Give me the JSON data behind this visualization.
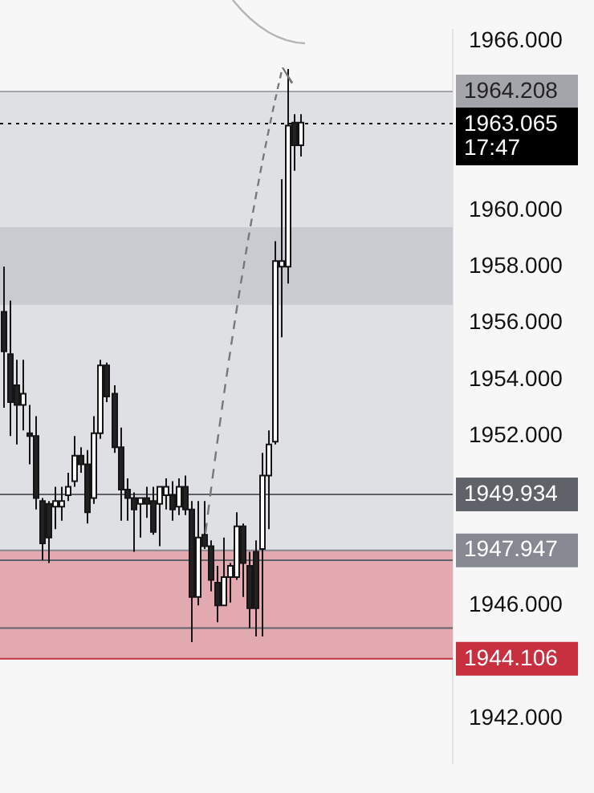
{
  "chart_data": {
    "type": "candlestick",
    "categories": [
      null,
      null,
      null,
      null,
      null,
      null,
      null,
      null,
      null,
      null,
      null,
      null,
      null,
      null,
      null,
      null,
      null,
      null,
      null,
      null,
      null,
      null,
      null,
      null,
      null,
      null,
      null,
      null,
      null,
      null,
      null,
      null,
      null,
      null,
      null,
      null,
      null,
      null,
      null,
      null,
      null,
      null,
      null,
      null,
      null,
      null,
      null,
      null,
      null,
      null,
      null,
      null,
      null,
      null,
      null,
      null,
      null,
      null,
      null,
      null,
      null,
      null,
      null,
      null,
      null,
      null,
      null,
      null,
      null,
      null
    ],
    "ohlc": [
      [
        1956.4,
        1958.0,
        1953.0,
        1955.0
      ],
      [
        1954.9,
        1956.8,
        1952.0,
        1953.2
      ],
      [
        1953.8,
        1954.7,
        1951.7,
        1953.1
      ],
      [
        1953.1,
        1954.7,
        1952.2,
        1953.5
      ],
      [
        1952.1,
        1953.1,
        1951.0,
        1952.0
      ],
      [
        1952.0,
        1952.7,
        1949.4,
        1949.8
      ],
      [
        1949.7,
        1949.8,
        1947.6,
        1948.2
      ],
      [
        1949.6,
        1949.7,
        1947.5,
        1948.4
      ],
      [
        1949.5,
        1950.2,
        1948.7,
        1949.7
      ],
      [
        1949.5,
        1950.2,
        1949.0,
        1949.7
      ],
      [
        1949.9,
        1950.7,
        1949.7,
        1950.2
      ],
      [
        1950.4,
        1952.0,
        1950.2,
        1951.3
      ],
      [
        1951.3,
        1951.6,
        1950.7,
        1951.0
      ],
      [
        1951.0,
        1951.5,
        1948.9,
        1949.3
      ],
      [
        1949.8,
        1952.7,
        1949.6,
        1952.1
      ],
      [
        1952.1,
        1954.7,
        1951.9,
        1954.5
      ],
      [
        1954.5,
        1954.6,
        1953.2,
        1953.4
      ],
      [
        1953.5,
        1953.8,
        1951.4,
        1951.6
      ],
      [
        1951.6,
        1952.3,
        1949.0,
        1950.1
      ],
      [
        1950.1,
        1950.5,
        1949.0,
        1949.8
      ],
      [
        1949.8,
        1950.0,
        1947.9,
        1949.4
      ],
      [
        1949.6,
        1949.8,
        1948.4,
        1949.8
      ],
      [
        1949.8,
        1950.2,
        1949.1,
        1949.6
      ],
      [
        1949.7,
        1950.2,
        1948.5,
        1948.6
      ],
      [
        1949.6,
        1950.2,
        1948.1,
        1950.2
      ],
      [
        1949.9,
        1950.5,
        1949.4,
        1950.2
      ],
      [
        1949.9,
        1950.4,
        1949.0,
        1949.4
      ],
      [
        1949.5,
        1950.5,
        1949.2,
        1950.2
      ],
      [
        1950.2,
        1950.6,
        1949.2,
        1949.4
      ],
      [
        1949.4,
        1949.7,
        1944.7,
        1946.3
      ],
      [
        1946.3,
        1949.7,
        1946.0,
        1948.4
      ],
      [
        1948.5,
        1949.7,
        1948.0,
        1948.1
      ],
      [
        1948.1,
        1948.3,
        1946.5,
        1946.9
      ],
      [
        1946.8,
        1947.4,
        1945.4,
        1946.0
      ],
      [
        1946.0,
        1948.4,
        1946.0,
        1947.0
      ],
      [
        1947.0,
        1947.5,
        1946.1,
        1947.4
      ],
      [
        1947.0,
        1949.3,
        1946.9,
        1948.8
      ],
      [
        1948.8,
        1948.9,
        1946.3,
        1947.5
      ],
      [
        1947.4,
        1947.9,
        1945.2,
        1945.9
      ],
      [
        1947.9,
        1948.3,
        1944.9,
        1945.9
      ],
      [
        1948.0,
        1951.4,
        1944.9,
        1950.6
      ],
      [
        1950.6,
        1952.2,
        1948.7,
        1951.7
      ],
      [
        1951.8,
        1958.9,
        1951.7,
        1958.2
      ],
      [
        1958.0,
        1961.1,
        1955.5,
        1958.2
      ],
      [
        1958.0,
        1965.0,
        1957.4,
        1963.0
      ],
      [
        1963.1,
        1963.4,
        1961.4,
        1962.3
      ],
      [
        1962.3,
        1963.4,
        1961.9,
        1963.1
      ],
      null,
      null,
      null,
      null,
      null,
      null,
      null,
      null,
      null,
      null,
      null,
      null,
      null,
      null,
      null,
      null,
      null,
      null,
      null,
      null,
      null,
      null,
      null
    ],
    "ylim": [
      1940.4,
      1966.4
    ],
    "yticks": [
      {
        "value": 1942,
        "label": "1942.000"
      },
      {
        "value": 1946,
        "label": "1946.000"
      },
      {
        "value": 1952,
        "label": "1952.000"
      },
      {
        "value": 1954,
        "label": "1954.000"
      },
      {
        "value": 1956,
        "label": "1956.000"
      },
      {
        "value": 1958,
        "label": "1958.000"
      },
      {
        "value": 1960,
        "label": "1960.000"
      },
      {
        "value": 1966,
        "label": "1966.000"
      }
    ],
    "tick_labels": "y",
    "bands": [
      {
        "axis": "y",
        "from": 1945.2,
        "to": 1964.208,
        "color": "#dfe0e3"
      },
      {
        "axis": "y",
        "from": 1956.65,
        "to": 1959.4,
        "color": "#c9cbd0"
      },
      {
        "axis": "y",
        "from": 1944.106,
        "to": 1947.947,
        "color": "#e3a9b0"
      }
    ],
    "ref_lines": [
      {
        "axis": "y",
        "value": 1964.208,
        "label": "1964.208",
        "color": "#a3a5ab",
        "line_style": "solid"
      },
      {
        "axis": "y",
        "value": 1963.065,
        "label": "1963.065\n17:47",
        "color": "#000000",
        "line_style": "dotted"
      },
      {
        "axis": "y",
        "value": 1949.934,
        "label": "1949.934",
        "color": "#5f6269",
        "line_style": "solid"
      },
      {
        "axis": "y",
        "value": 1947.947,
        "label": "1947.947",
        "color": "#868992",
        "line_style": "solid"
      },
      {
        "axis": "y",
        "value": 1947.6,
        "color": "#5f6269",
        "line_style": "solid"
      },
      {
        "axis": "y",
        "value": 1945.2,
        "color": "#5f6269",
        "line_style": "solid"
      },
      {
        "axis": "y",
        "value": 1944.106,
        "label": "1944.106",
        "color": "#c8303f",
        "line_style": "solid"
      }
    ]
  }
}
